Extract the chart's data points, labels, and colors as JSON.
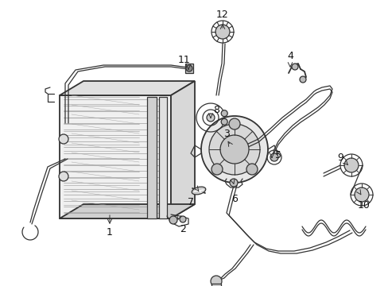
{
  "background_color": "#ffffff",
  "line_color": "#333333",
  "label_color": "#111111",
  "figsize": [
    4.89,
    3.6
  ],
  "dpi": 100
}
